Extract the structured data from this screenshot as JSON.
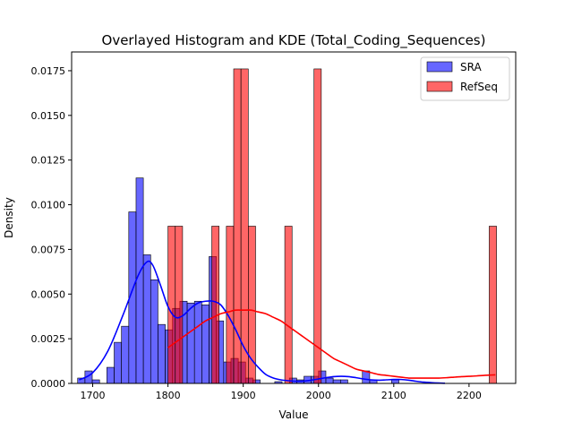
{
  "chart_data": {
    "type": "histogram",
    "title": "Overlayed Histogram and KDE (Total_Coding_Sequences)",
    "xlabel": "Value",
    "ylabel": "Density",
    "xlim": [
      1672,
      2262
    ],
    "ylim": [
      0,
      0.01855
    ],
    "x_ticks": [
      1700,
      1800,
      1900,
      2000,
      2100,
      2200
    ],
    "x_tick_labels": [
      "1700",
      "1800",
      "1900",
      "2000",
      "2100",
      "2200"
    ],
    "y_ticks": [
      0,
      0.0025,
      0.005,
      0.0075,
      0.01,
      0.0125,
      0.015,
      0.0175
    ],
    "y_tick_labels": [
      "0.0000",
      "0.0025",
      "0.0050",
      "0.0075",
      "0.0100",
      "0.0125",
      "0.0150",
      "0.0175"
    ],
    "legend": {
      "placement": "top-right"
    },
    "series": [
      {
        "name": "SRA",
        "color": "#0000ff",
        "bar_fill": "rgba(0,0,255,0.6)",
        "bins_start": 1680,
        "bin_width": 9.7,
        "densities": [
          0.0003,
          0.0007,
          0.0002,
          0,
          0.0009,
          0.0023,
          0.0032,
          0.0096,
          0.0115,
          0.0072,
          0.0058,
          0.0033,
          0.003,
          0.0042,
          0.0046,
          0.0045,
          0.0046,
          0.0044,
          0.0071,
          0.0035,
          0.0012,
          0.0014,
          0.0012,
          0.0003,
          0.0002,
          0,
          0,
          0.0001,
          0,
          0.0003,
          0.0002,
          0.0004,
          0.0004,
          0.0007,
          0.0003,
          0.0002,
          0.0002,
          0,
          0,
          0.0007,
          0.0002,
          0,
          0,
          0.0002,
          0,
          0,
          0,
          0,
          0,
          0,
          0,
          0,
          0,
          0,
          0,
          0,
          0,
          0
        ],
        "kde_x": [
          1682,
          1700,
          1720,
          1740,
          1760,
          1772,
          1780,
          1790,
          1800,
          1810,
          1820,
          1830,
          1840,
          1850,
          1860,
          1870,
          1880,
          1890,
          1900,
          1910,
          1920,
          1930,
          1940,
          1950,
          1960,
          1970,
          1980,
          1990,
          2000,
          2010,
          2020,
          2030,
          2040,
          2050,
          2060,
          2070,
          2080,
          2090,
          2100,
          2110,
          2120,
          2130,
          2140,
          2150,
          2160,
          2168
        ],
        "kde_y": [
          0.0002,
          0.0006,
          0.0018,
          0.0038,
          0.006,
          0.0068,
          0.0066,
          0.0055,
          0.0043,
          0.0037,
          0.0038,
          0.0042,
          0.0045,
          0.0046,
          0.0046,
          0.0044,
          0.0038,
          0.003,
          0.0021,
          0.0014,
          0.0009,
          0.0005,
          0.0003,
          0.0002,
          0.00015,
          0.00012,
          0.00013,
          0.00018,
          0.00025,
          0.00032,
          0.00038,
          0.0004,
          0.00038,
          0.00032,
          0.00025,
          0.0002,
          0.00018,
          0.0002,
          0.00022,
          0.00022,
          0.00018,
          0.00012,
          7e-05,
          4e-05,
          2e-05,
          1e-05
        ]
      },
      {
        "name": "RefSeq",
        "color": "#ff0000",
        "bar_fill": "rgba(255,0,0,0.6)",
        "bins_start": 1800,
        "bin_width": 9.7,
        "densities": [
          0.0088,
          0.0088,
          0,
          0,
          0,
          0,
          0.0088,
          0,
          0.0088,
          0.0176,
          0.0176,
          0.0088,
          0,
          0,
          0,
          0,
          0.0088,
          0,
          0,
          0,
          0.0176,
          0,
          0,
          0,
          0,
          0,
          0,
          0,
          0,
          0,
          0,
          0,
          0,
          0,
          0,
          0,
          0,
          0,
          0,
          0,
          0,
          0,
          0,
          0,
          0.0088
        ],
        "kde_x": [
          1800,
          1810,
          1820,
          1830,
          1840,
          1850,
          1860,
          1870,
          1880,
          1890,
          1900,
          1910,
          1920,
          1930,
          1940,
          1950,
          1960,
          1970,
          1980,
          1990,
          2000,
          2010,
          2020,
          2030,
          2040,
          2050,
          2060,
          2070,
          2080,
          2090,
          2100,
          2110,
          2120,
          2130,
          2140,
          2150,
          2160,
          2170,
          2180,
          2190,
          2200,
          2210,
          2220,
          2230,
          2235
        ],
        "kde_y": [
          0.002,
          0.0023,
          0.0026,
          0.0029,
          0.0032,
          0.0035,
          0.0037,
          0.0039,
          0.004,
          0.0041,
          0.0041,
          0.0041,
          0.004,
          0.0039,
          0.0037,
          0.0035,
          0.0032,
          0.0029,
          0.0026,
          0.0023,
          0.002,
          0.0017,
          0.0014,
          0.0012,
          0.001,
          0.0008,
          0.0007,
          0.0006,
          0.0005,
          0.00045,
          0.0004,
          0.00035,
          0.0003,
          0.0003,
          0.0003,
          0.0003,
          0.0003,
          0.00032,
          0.00035,
          0.00038,
          0.0004,
          0.00042,
          0.00045,
          0.00047,
          0.00048
        ]
      }
    ]
  }
}
